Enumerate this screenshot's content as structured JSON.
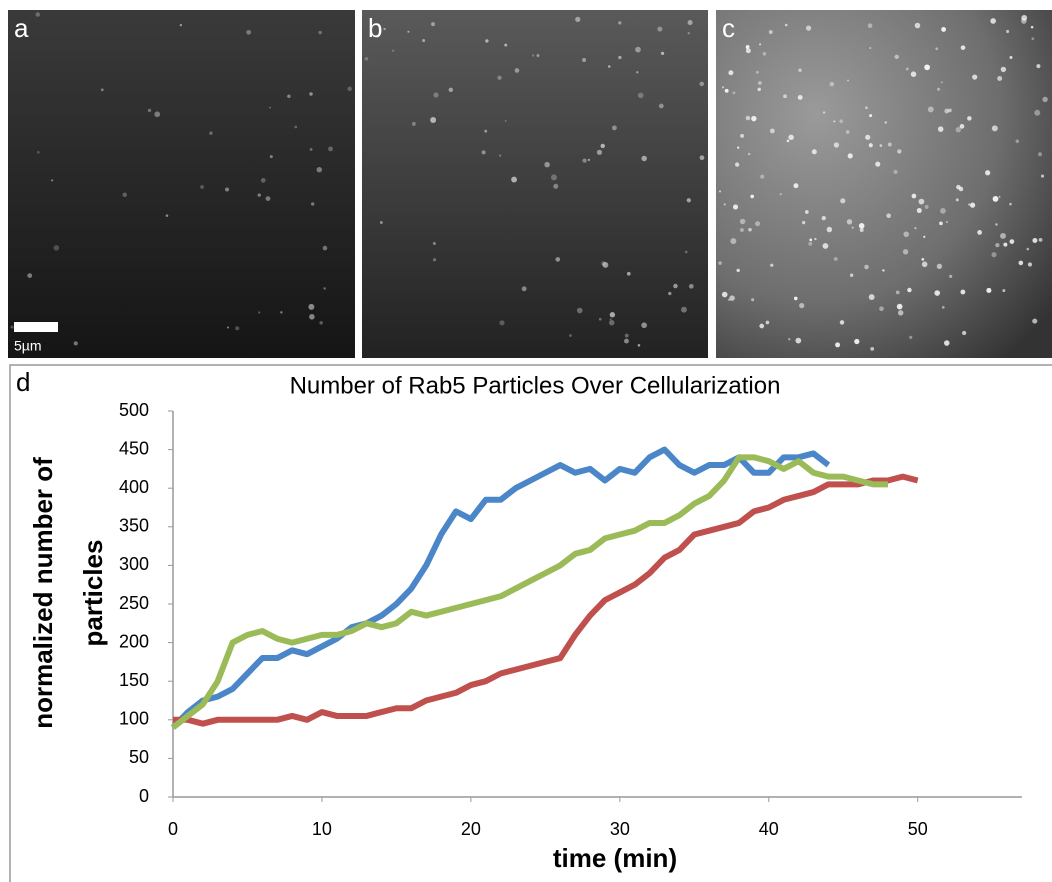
{
  "image_panels": {
    "labels": [
      "a",
      "b",
      "c"
    ],
    "scale_bar": "5µm"
  },
  "chart_data": {
    "type": "line",
    "panel_label": "d",
    "title": "Number of Rab5 Particles Over Cellularization",
    "xlabel": "time (min)",
    "ylabel": [
      "normalized number of",
      "particles"
    ],
    "x": [
      0,
      1,
      2,
      3,
      4,
      5,
      6,
      7,
      8,
      9,
      10,
      11,
      12,
      13,
      14,
      15,
      16,
      17,
      18,
      19,
      20,
      21,
      22,
      23,
      24,
      25,
      26,
      27,
      28,
      29,
      30,
      31,
      32,
      33,
      34,
      35,
      36,
      37,
      38,
      39,
      40,
      41,
      42,
      43,
      44,
      45,
      46,
      47,
      48,
      49,
      50
    ],
    "series": [
      {
        "color": "#4a86c8",
        "values": [
          90,
          110,
          125,
          130,
          140,
          160,
          180,
          180,
          190,
          185,
          195,
          205,
          220,
          225,
          235,
          250,
          270,
          300,
          340,
          370,
          360,
          385,
          385,
          400,
          410,
          420,
          430,
          420,
          425,
          410,
          425,
          420,
          440,
          450,
          430,
          420,
          430,
          430,
          440,
          420,
          420,
          440,
          440,
          445,
          430,
          null,
          null,
          null,
          null,
          null,
          null
        ]
      },
      {
        "color": "#c0504d",
        "values": [
          100,
          100,
          95,
          100,
          100,
          100,
          100,
          100,
          105,
          100,
          110,
          105,
          105,
          105,
          110,
          115,
          115,
          125,
          130,
          135,
          145,
          150,
          160,
          165,
          170,
          175,
          180,
          210,
          235,
          255,
          265,
          275,
          290,
          310,
          320,
          340,
          345,
          350,
          355,
          370,
          375,
          385,
          390,
          395,
          405,
          405,
          405,
          410,
          410,
          415,
          410
        ]
      },
      {
        "color": "#9bbb59",
        "values": [
          90,
          105,
          120,
          150,
          200,
          210,
          215,
          205,
          200,
          205,
          210,
          210,
          215,
          225,
          220,
          225,
          240,
          235,
          240,
          245,
          250,
          255,
          260,
          270,
          280,
          290,
          300,
          315,
          320,
          335,
          340,
          345,
          355,
          355,
          365,
          380,
          390,
          410,
          440,
          440,
          435,
          425,
          435,
          420,
          415,
          415,
          410,
          405,
          405,
          null,
          null
        ]
      }
    ],
    "xlim": [
      0,
      57
    ],
    "ylim": [
      0,
      500
    ],
    "xticks": [
      0,
      10,
      20,
      30,
      40,
      50
    ],
    "yticks": [
      0,
      50,
      100,
      150,
      200,
      250,
      300,
      350,
      400,
      450,
      500
    ],
    "grid": false
  }
}
